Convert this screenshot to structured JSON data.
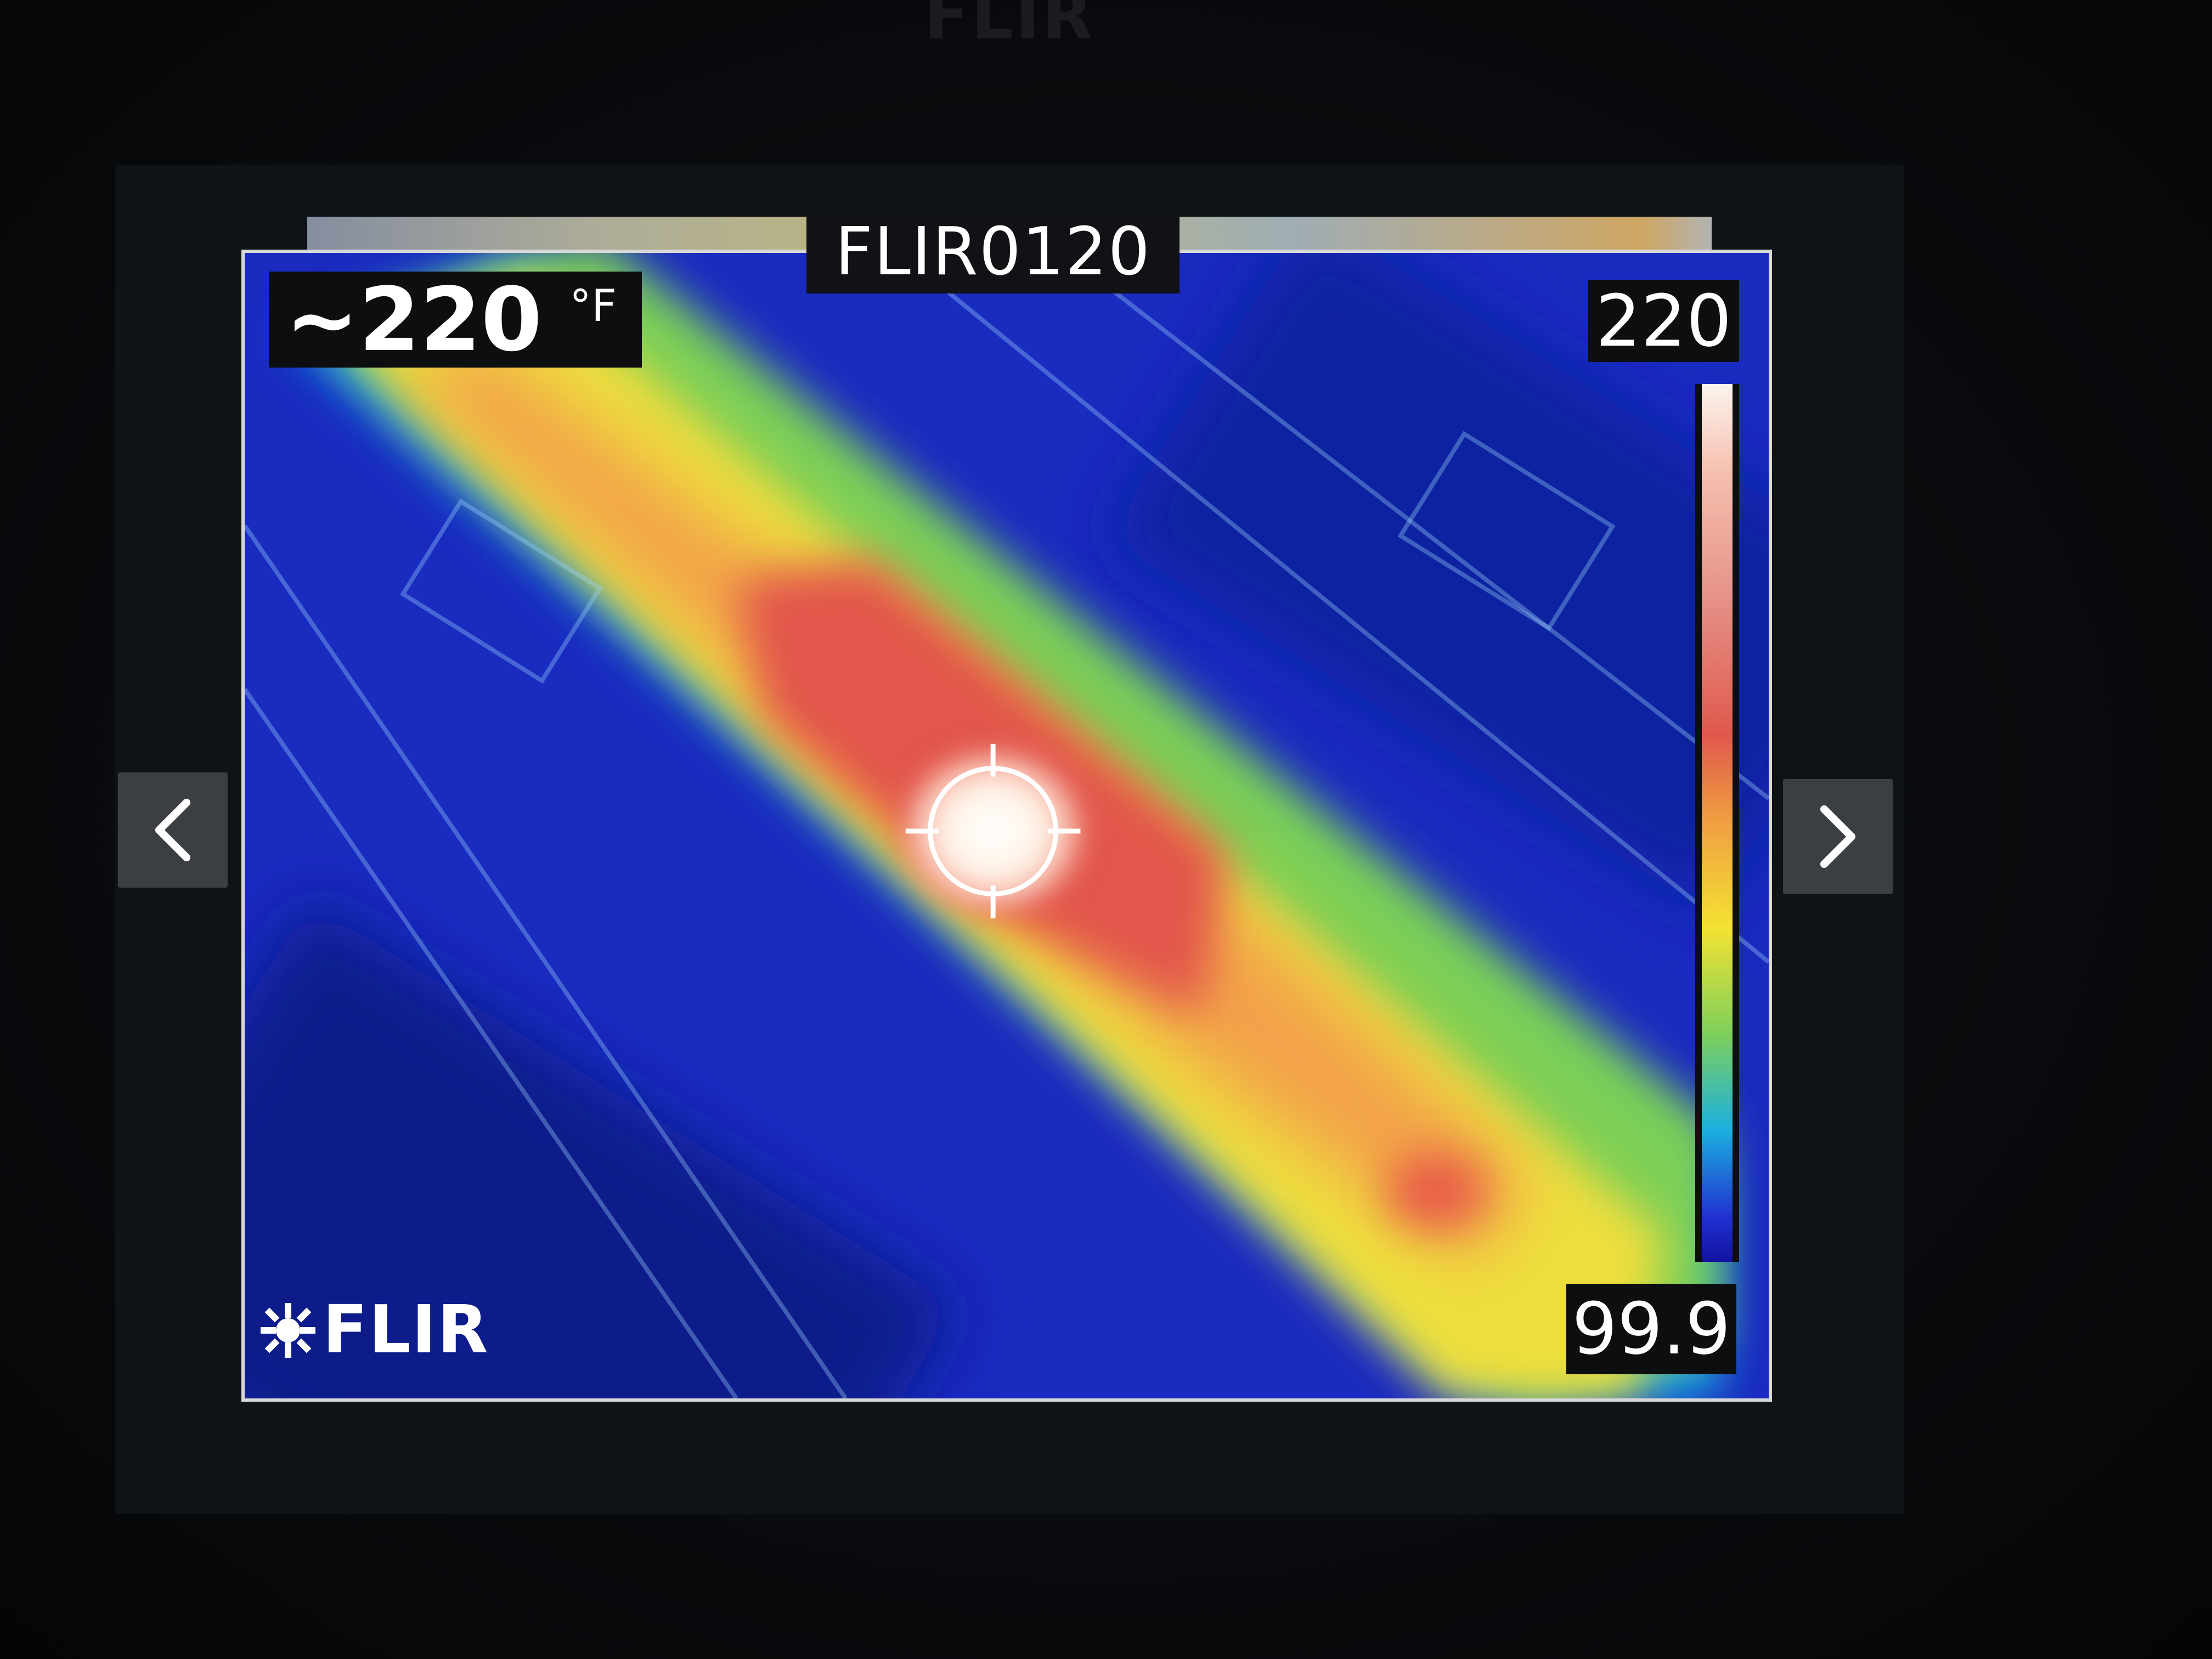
{
  "brand": {
    "top_logo": "FLIR",
    "image_logo": "FLIR"
  },
  "viewer": {
    "prev_icon": "chevron-left-icon",
    "next_icon": "chevron-right-icon"
  },
  "image": {
    "camera_name": "FLIR0120",
    "spot_temperature": "~220",
    "unit": "°F",
    "scale_max": "220",
    "scale_min": "99.9",
    "palette": "iron-rainbow",
    "crosshair_icon": "spot-crosshair-icon"
  },
  "colors": {
    "background": "#050608",
    "hot": "#e0584c",
    "cold": "#1728b8"
  }
}
